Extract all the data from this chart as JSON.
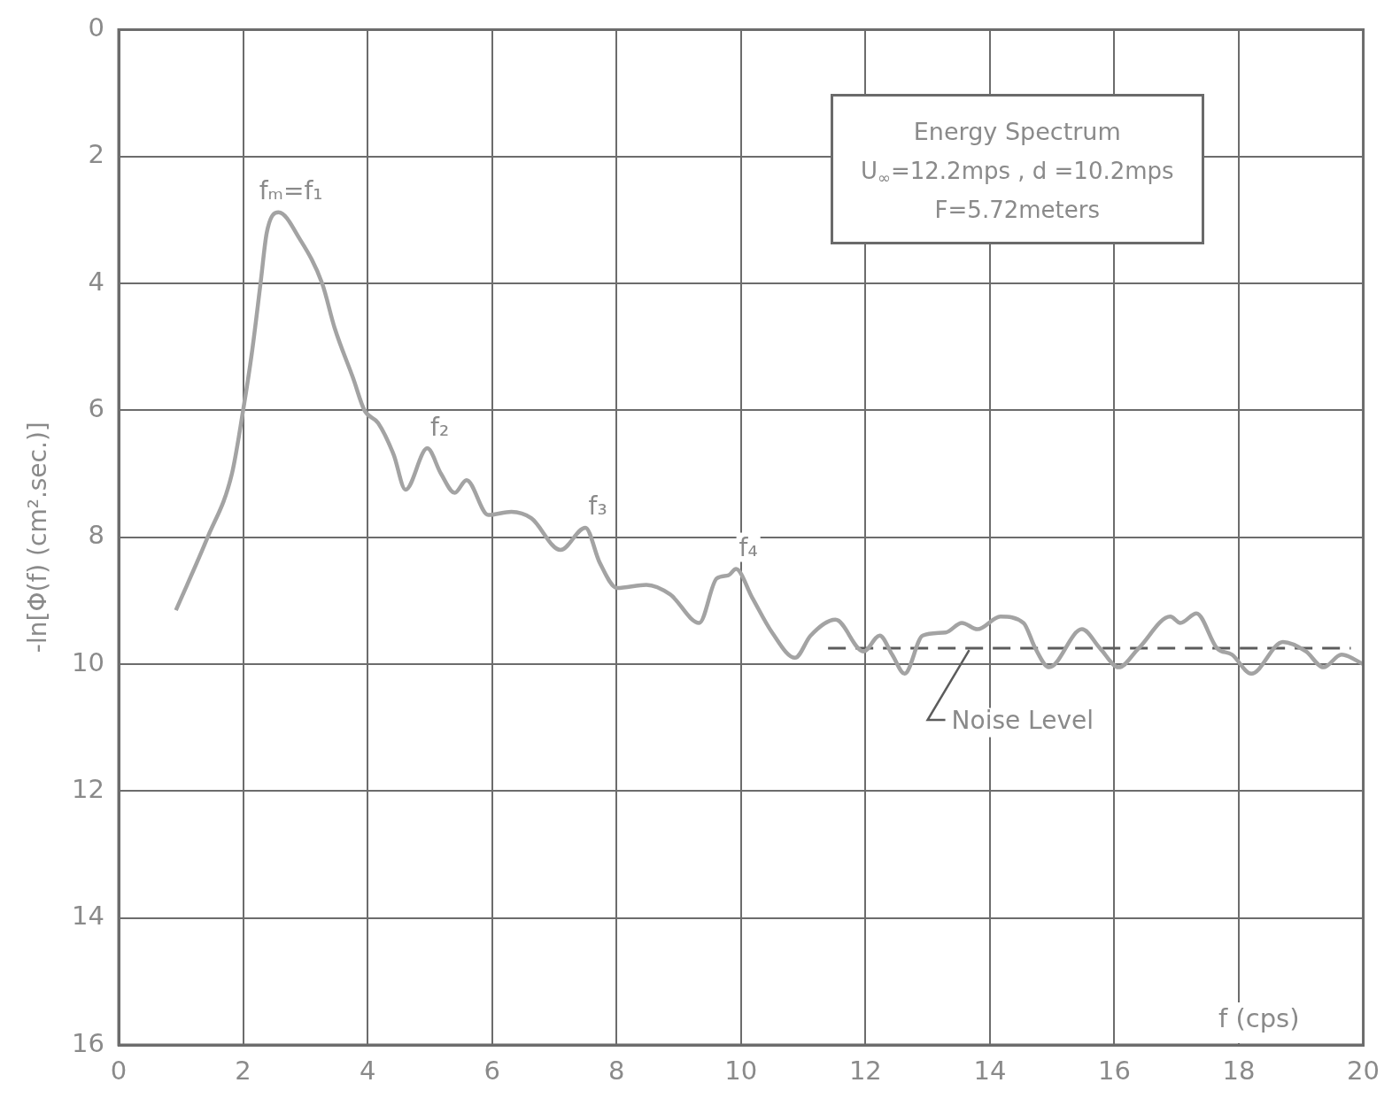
{
  "chart_data": {
    "type": "line",
    "title": "Energy Spectrum",
    "subtitle": "U$_{∞}$=12.2mps , d =10.2mps\nF=5.72meters",
    "xlabel": "f (cps)",
    "ylabel": "-ln[Φ(f) (cm².sec.)]",
    "x": [
      0.92,
      1.43,
      1.82,
      2.0,
      2.14,
      2.28,
      2.38,
      2.57,
      2.91,
      3.27,
      3.47,
      3.77,
      3.95,
      4.17,
      4.42,
      4.61,
      4.96,
      5.18,
      5.4,
      5.59,
      5.94,
      6.31,
      6.63,
      7.1,
      7.5,
      7.73,
      8.01,
      8.48,
      8.86,
      9.33,
      9.61,
      9.8,
      9.92,
      10.18,
      10.5,
      10.87,
      11.12,
      11.52,
      11.97,
      12.23,
      12.43,
      12.63,
      12.92,
      13.29,
      13.55,
      13.8,
      14.17,
      14.54,
      14.73,
      14.95,
      15.48,
      15.77,
      16.07,
      16.39,
      16.9,
      17.06,
      17.32,
      17.65,
      17.89,
      18.2,
      18.71,
      19.08,
      19.36,
      19.65,
      20.0
    ],
    "series": [
      {
        "color": "#a3a3a3",
        "values": [
          9.15,
          8.0,
          7.0,
          6.0,
          5.1,
          4.0,
          3.2,
          2.88,
          3.3,
          4.0,
          4.7,
          5.5,
          6.0,
          6.2,
          6.7,
          7.25,
          6.6,
          7.0,
          7.3,
          7.1,
          7.65,
          7.6,
          7.7,
          8.2,
          7.85,
          8.4,
          8.8,
          8.75,
          8.9,
          9.35,
          8.65,
          8.6,
          8.5,
          8.95,
          9.5,
          9.9,
          9.55,
          9.3,
          9.8,
          9.55,
          9.85,
          10.15,
          9.55,
          9.5,
          9.35,
          9.45,
          9.25,
          9.35,
          9.75,
          10.05,
          9.45,
          9.75,
          10.05,
          9.75,
          9.25,
          9.35,
          9.2,
          9.75,
          9.85,
          10.15,
          9.65,
          9.8,
          10.05,
          9.85,
          10.0
        ]
      },
      {
        "name": "Noise Level",
        "color": "#5c5c5c",
        "line_style": "dashed",
        "x": [
          11.4,
          19.8
        ],
        "values": [
          9.75,
          9.75
        ]
      }
    ],
    "xlim": [
      0,
      20
    ],
    "xticks": [
      0,
      2,
      4,
      6,
      8,
      10,
      12,
      14,
      16,
      18,
      20
    ],
    "ylim": [
      16,
      0
    ],
    "yticks": [
      0,
      2,
      4,
      6,
      8,
      10,
      12,
      14,
      16
    ],
    "grid": true,
    "annotations": [
      {
        "text": "fₘ=f₁",
        "x": 2.57,
        "y": 2.88
      },
      {
        "text": "f₂",
        "x": 4.96,
        "y": 6.6
      },
      {
        "text": "f₃",
        "x": 7.5,
        "y": 7.85
      },
      {
        "text": "f₄",
        "x": 9.92,
        "y": 8.5
      }
    ]
  }
}
